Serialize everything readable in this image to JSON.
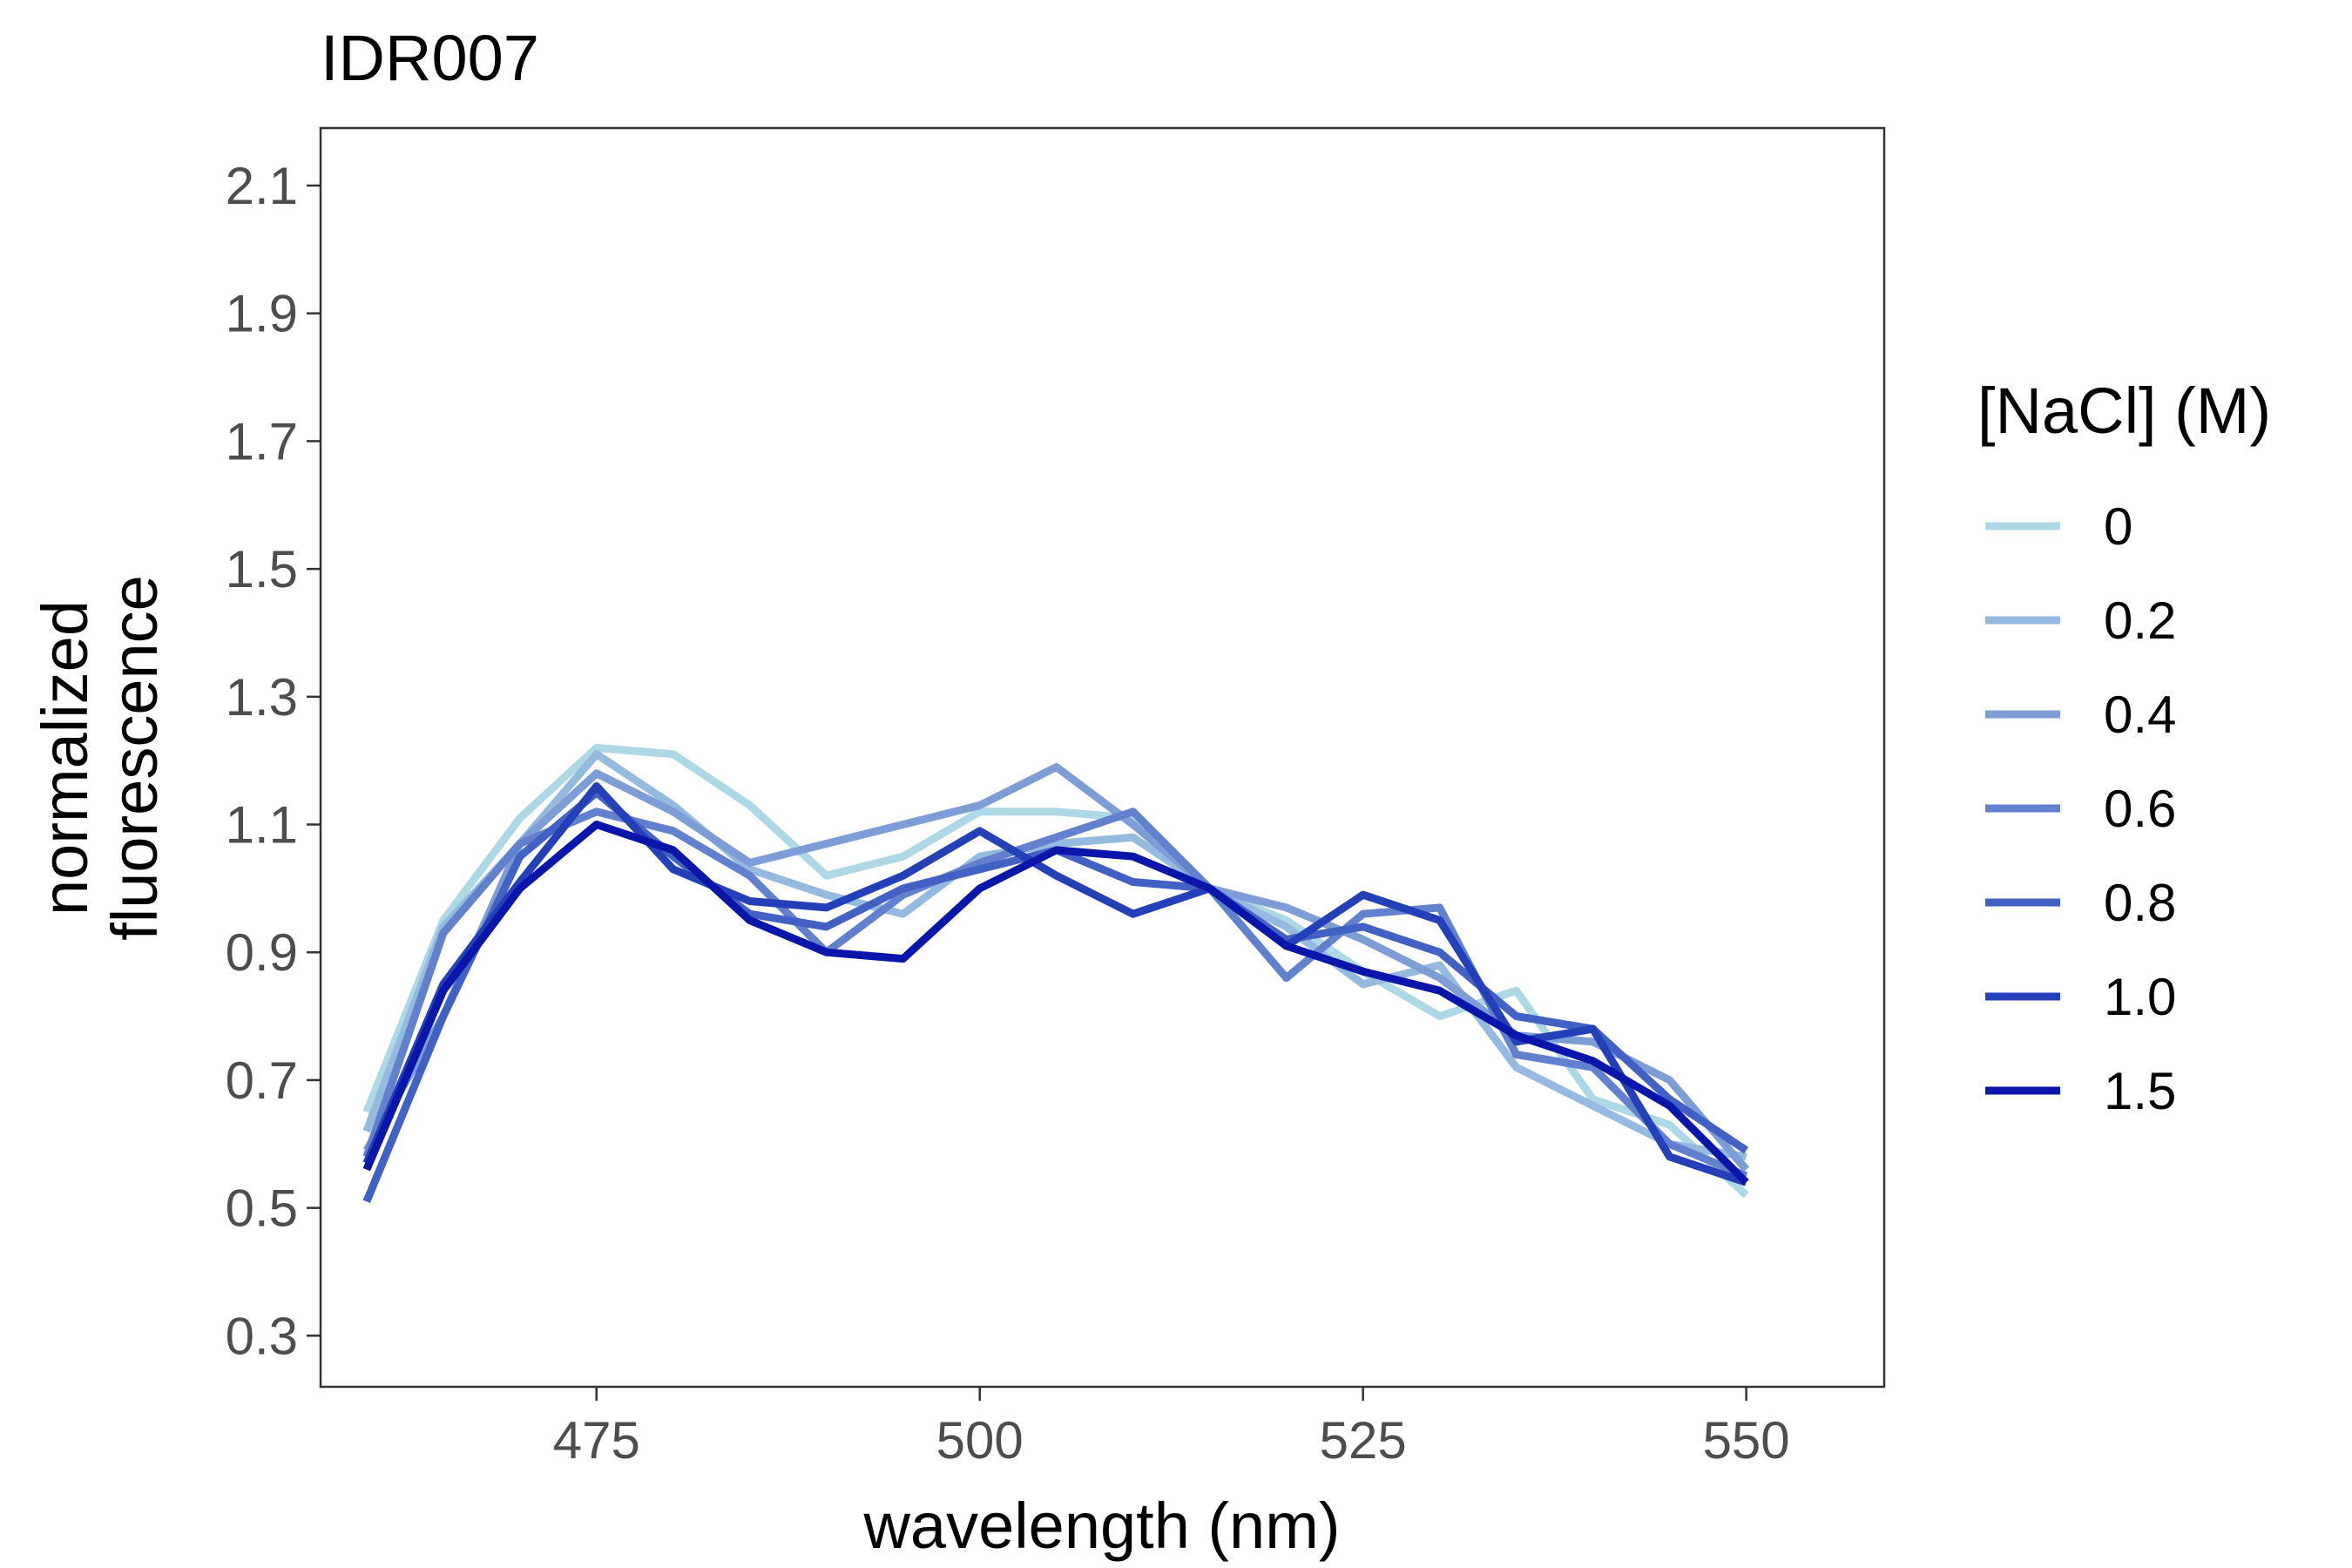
{
  "chart_data": {
    "type": "line",
    "title": "IDR007",
    "xlabel": "wavelength (nm)",
    "ylabel": [
      "normalized",
      "fluorescence"
    ],
    "xlim": [
      457,
      559
    ],
    "ylim": [
      0.22,
      2.19
    ],
    "xticks": [
      475,
      500,
      525,
      550
    ],
    "xtick_labels": [
      "475",
      "500",
      "525",
      "550"
    ],
    "yticks": [
      0.3,
      0.5,
      0.7,
      0.9,
      1.1,
      1.3,
      1.5,
      1.7,
      1.9,
      2.1
    ],
    "ytick_labels": [
      "0.3",
      "0.5",
      "0.7",
      "0.9",
      "1.1",
      "1.3",
      "1.5",
      "1.7",
      "1.9",
      "2.1"
    ],
    "grid": false,
    "legend_title": "[NaCl] (M)",
    "legend_position": "right",
    "x": [
      460,
      465,
      470,
      475,
      480,
      485,
      490,
      495,
      500,
      505,
      510,
      515,
      520,
      525,
      530,
      535,
      540,
      545,
      550
    ],
    "series": [
      {
        "name": "0",
        "color": "#ADD8E6",
        "values": [
          0.65,
          0.95,
          1.11,
          1.22,
          1.21,
          1.13,
          1.02,
          1.05,
          1.12,
          1.12,
          1.11,
          1.0,
          0.95,
          0.87,
          0.8,
          0.84,
          0.67,
          0.63,
          0.52
        ]
      },
      {
        "name": "0.2",
        "color": "#94BBDF",
        "values": [
          0.62,
          0.94,
          1.07,
          1.21,
          1.13,
          1.03,
          0.99,
          0.96,
          1.05,
          1.07,
          1.08,
          1.0,
          0.94,
          0.85,
          0.88,
          0.72,
          0.66,
          0.6,
          0.58
        ]
      },
      {
        "name": "0.4",
        "color": "#7C9DD6",
        "values": [
          0.59,
          0.8,
          1.07,
          1.18,
          1.12,
          1.04,
          1.07,
          1.1,
          1.13,
          1.19,
          1.1,
          1.0,
          0.97,
          0.92,
          0.86,
          0.77,
          0.76,
          0.7,
          0.56
        ]
      },
      {
        "name": "0.6",
        "color": "#6180CE",
        "values": [
          0.58,
          0.93,
          1.07,
          1.12,
          1.09,
          1.02,
          0.9,
          0.99,
          1.04,
          1.08,
          1.12,
          1.0,
          0.86,
          0.96,
          0.97,
          0.74,
          0.72,
          0.6,
          0.55
        ]
      },
      {
        "name": "0.8",
        "color": "#4261C4",
        "values": [
          0.51,
          0.8,
          1.05,
          1.15,
          1.05,
          0.96,
          0.94,
          1.0,
          1.03,
          1.06,
          1.01,
          1.0,
          0.92,
          0.94,
          0.9,
          0.8,
          0.78,
          0.67,
          0.59
        ]
      },
      {
        "name": "1.0",
        "color": "#2440B8",
        "values": [
          0.57,
          0.85,
          1.01,
          1.16,
          1.03,
          0.98,
          0.97,
          1.02,
          1.09,
          1.02,
          0.96,
          1.0,
          0.91,
          0.99,
          0.95,
          0.76,
          0.78,
          0.58,
          0.54
        ]
      },
      {
        "name": "1.5",
        "color": "#0A16AA",
        "values": [
          0.56,
          0.84,
          1.0,
          1.1,
          1.06,
          0.95,
          0.9,
          0.89,
          1.0,
          1.06,
          1.05,
          1.0,
          0.91,
          0.87,
          0.84,
          0.77,
          0.73,
          0.66,
          0.54
        ]
      }
    ]
  }
}
